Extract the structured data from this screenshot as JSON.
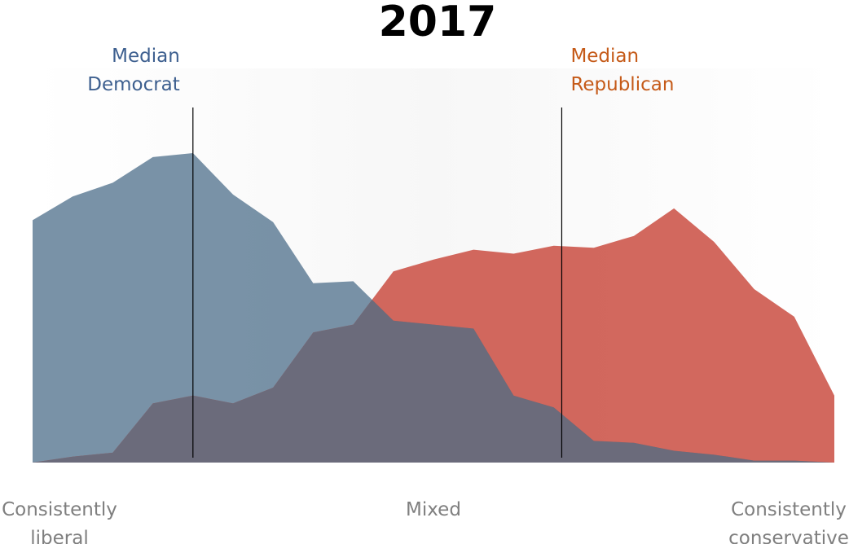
{
  "chart_data": {
    "type": "area",
    "title": "2017",
    "x_positions": [
      0,
      1,
      2,
      3,
      4,
      5,
      6,
      7,
      8,
      9,
      10,
      11,
      12,
      13,
      14,
      15,
      16,
      17,
      18,
      19,
      20
    ],
    "xlim": [
      0,
      20
    ],
    "ylim": [
      0,
      100
    ],
    "x_tick_labels": [
      {
        "x": 0,
        "lines": [
          "Consistently",
          "liberal"
        ]
      },
      {
        "x": 10,
        "lines": [
          "Mixed"
        ]
      },
      {
        "x": 20,
        "lines": [
          "Consistently",
          "conservative"
        ]
      }
    ],
    "series": [
      {
        "name": "Democrat",
        "color": "#5b7a94",
        "values": [
          61.5,
          67.5,
          71,
          77.5,
          78.5,
          68,
          61,
          45.5,
          46,
          36,
          35,
          34,
          17,
          14,
          5.5,
          5,
          3,
          2,
          0.5,
          0.5,
          0
        ]
      },
      {
        "name": "Republican",
        "color": "#c8473b",
        "values": [
          0,
          1.5,
          2.5,
          15,
          17,
          15,
          19,
          33,
          35,
          48.5,
          51.5,
          54,
          53,
          55,
          54.5,
          57.5,
          64.5,
          56,
          44,
          37,
          17
        ]
      }
    ],
    "overlap_color": "#6b6b7b",
    "medians": [
      {
        "label_lines": [
          "Median",
          "Democrat"
        ],
        "x": 4,
        "color": "#3d5f8f"
      },
      {
        "label_lines": [
          "Median",
          "Republican"
        ],
        "x": 13.2,
        "color": "#c55a18"
      }
    ],
    "grid": false,
    "legend": "none"
  }
}
